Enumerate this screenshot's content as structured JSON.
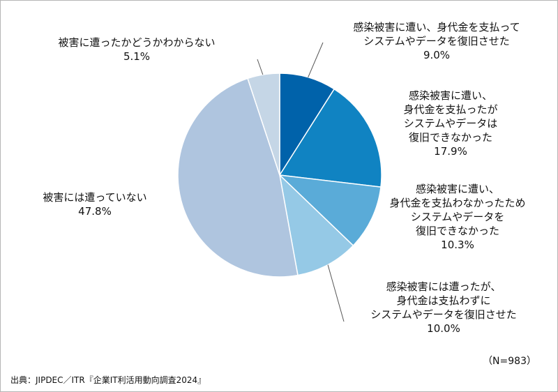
{
  "chart_data": {
    "type": "pie",
    "start": "top",
    "direction": "clockwise",
    "slices": [
      {
        "label": "感染被害に遭い、身代金を支払ってシステムやデータを復旧させた",
        "lines": [
          "感染被害に遭い、身代金を支払って",
          "システムやデータを復旧させた",
          "9.0%"
        ],
        "value": 9.0,
        "color": "#0062AA"
      },
      {
        "label": "感染被害に遭い、身代金を支払ったがシステムやデータは復旧できなかった",
        "lines": [
          "感染被害に遭い、",
          "身代金を支払ったが",
          "システムやデータは",
          "復旧できなかった",
          "17.9%"
        ],
        "value": 17.9,
        "color": "#1083C2"
      },
      {
        "label": "感染被害に遭い、身代金を支払わなかったためシステムやデータを復旧できなかった",
        "lines": [
          "感染被害に遭い、",
          "身代金を支払わなかったため",
          "システムやデータを",
          "復旧できなかった",
          "10.3%"
        ],
        "value": 10.3,
        "color": "#5AABD8"
      },
      {
        "label": "感染被害には遭ったが、身代金は支払わずにシステムやデータを復旧させた",
        "lines": [
          "感染被害には遭ったが、",
          "身代金は支払わずに",
          "システムやデータを復旧させた",
          "10.0%"
        ],
        "value": 10.0,
        "color": "#95C9E6"
      },
      {
        "label": "被害には遭っていない",
        "lines": [
          "被害には遭っていない",
          "47.8%"
        ],
        "value": 47.8,
        "color": "#AFC5DF"
      },
      {
        "label": "被害に遭ったかどうかわからない",
        "lines": [
          "被害に遭ったかどうかわからない",
          "5.1%"
        ],
        "value": 5.1,
        "color": "#C5D6E6"
      }
    ]
  },
  "sample_size": "（N=983）",
  "source": "出典：JIPDEC／ITR『企業IT利活用動向調査2024』"
}
